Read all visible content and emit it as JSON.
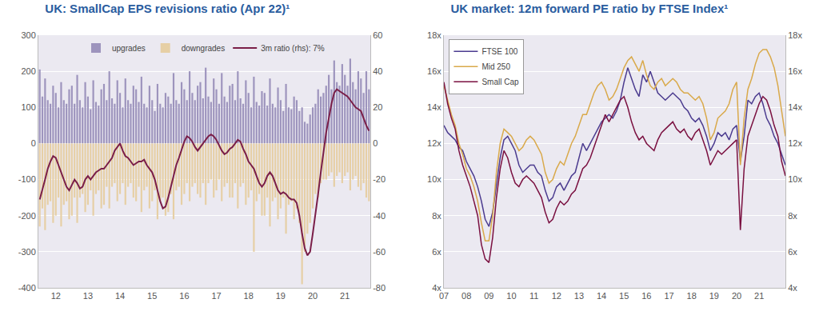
{
  "chart_data": [
    {
      "type": "bar",
      "title": "UK: SmallCap EPS revisions ratio (Apr 22)¹",
      "categories": [
        null,
        null,
        null,
        null,
        null,
        null,
        "12",
        null,
        null,
        null,
        null,
        null,
        null,
        null,
        null,
        null,
        null,
        null,
        "13",
        null,
        null,
        null,
        null,
        null,
        null,
        null,
        null,
        null,
        null,
        null,
        "14",
        null,
        null,
        null,
        null,
        null,
        null,
        null,
        null,
        null,
        null,
        null,
        "15",
        null,
        null,
        null,
        null,
        null,
        null,
        null,
        null,
        null,
        null,
        null,
        "16",
        null,
        null,
        null,
        null,
        null,
        null,
        null,
        null,
        null,
        null,
        null,
        "17",
        null,
        null,
        null,
        null,
        null,
        null,
        null,
        null,
        null,
        null,
        null,
        "18",
        null,
        null,
        null,
        null,
        null,
        null,
        null,
        null,
        null,
        null,
        null,
        "19",
        null,
        null,
        null,
        null,
        null,
        null,
        null,
        null,
        null,
        null,
        null,
        "20",
        null,
        null,
        null,
        null,
        null,
        null,
        null,
        null,
        null,
        null,
        null,
        "21",
        null,
        null,
        null,
        null,
        null,
        null,
        null,
        null,
        null
      ],
      "series": [
        {
          "name": "upgrades",
          "type": "bar",
          "color": "#9d94bd",
          "values": [
            205,
            130,
            180,
            120,
            110,
            160,
            140,
            100,
            170,
            120,
            110,
            150,
            160,
            110,
            190,
            120,
            100,
            170,
            130,
            95,
            175,
            115,
            105,
            150,
            165,
            120,
            200,
            125,
            110,
            175,
            140,
            100,
            180,
            120,
            110,
            160,
            150,
            115,
            185,
            110,
            100,
            160,
            120,
            90,
            165,
            110,
            100,
            140,
            130,
            110,
            195,
            120,
            110,
            170,
            150,
            120,
            200,
            140,
            120,
            160,
            170,
            125,
            210,
            130,
            115,
            180,
            150,
            110,
            195,
            130,
            115,
            160,
            165,
            120,
            200,
            125,
            110,
            175,
            140,
            100,
            185,
            115,
            105,
            145,
            140,
            105,
            180,
            110,
            100,
            155,
            120,
            90,
            165,
            100,
            95,
            130,
            120,
            90,
            100,
            60,
            55,
            80,
            100,
            110,
            150,
            130,
            140,
            160,
            190,
            150,
            230,
            170,
            160,
            220,
            190,
            160,
            235,
            170,
            150,
            200,
            180,
            140,
            200,
            150
          ]
        },
        {
          "name": "downgrades",
          "type": "bar",
          "color": "#e6cfa5",
          "values": [
            -230,
            -180,
            -240,
            -170,
            -160,
            -220,
            -200,
            -150,
            -230,
            -170,
            -160,
            -210,
            -200,
            -150,
            -220,
            -150,
            -140,
            -190,
            -170,
            -130,
            -200,
            -140,
            -130,
            -180,
            -170,
            -120,
            -180,
            -120,
            -110,
            -160,
            -140,
            -110,
            -170,
            -120,
            -110,
            -150,
            -160,
            -120,
            -190,
            -130,
            -120,
            -180,
            -160,
            -130,
            -210,
            -160,
            -150,
            -200,
            -190,
            -140,
            -210,
            -130,
            -120,
            -170,
            -140,
            -110,
            -160,
            -120,
            -110,
            -140,
            -150,
            -110,
            -170,
            -110,
            -100,
            -150,
            -130,
            -100,
            -160,
            -120,
            -110,
            -150,
            -150,
            -110,
            -180,
            -120,
            -110,
            -170,
            -150,
            -130,
            -300,
            -160,
            -140,
            -200,
            -200,
            -150,
            -230,
            -160,
            -150,
            -210,
            -180,
            -150,
            -250,
            -170,
            -160,
            -210,
            -180,
            -220,
            -390,
            -300,
            -250,
            -220,
            -180,
            -140,
            -150,
            -110,
            -100,
            -100,
            -90,
            -80,
            -120,
            -90,
            -80,
            -110,
            -90,
            -80,
            -130,
            -100,
            -90,
            -120,
            -130,
            -110,
            -150,
            -160
          ]
        },
        {
          "name": "3m ratio (rhs): 7%",
          "type": "line",
          "axis": "y2",
          "color": "#7a1e48",
          "values": [
            -31,
            -26,
            -20,
            -14,
            -10,
            -7,
            -8,
            -12,
            -16,
            -20,
            -24,
            -26,
            -23,
            -20,
            -22,
            -25,
            -24,
            -20,
            -18,
            -20,
            -18,
            -16,
            -15,
            -14,
            -14,
            -12,
            -10,
            -8,
            -4,
            -2,
            0,
            -4,
            -7,
            -8,
            -10,
            -12,
            -11,
            -10,
            -10,
            -9,
            -12,
            -14,
            -16,
            -20,
            -26,
            -32,
            -36,
            -35,
            -30,
            -24,
            -18,
            -12,
            -8,
            -3,
            1,
            4,
            3,
            1,
            -2,
            -4,
            -2,
            0,
            2,
            4,
            5,
            4,
            2,
            -1,
            -4,
            -6,
            -5,
            -3,
            -2,
            0,
            2,
            1,
            -3,
            -6,
            -10,
            -12,
            -14,
            -18,
            -22,
            -24,
            -22,
            -18,
            -16,
            -18,
            -22,
            -26,
            -28,
            -27,
            -28,
            -30,
            -31,
            -31,
            -33,
            -40,
            -50,
            -58,
            -62,
            -60,
            -50,
            -40,
            -28,
            -16,
            -4,
            6,
            14,
            22,
            28,
            30,
            29,
            28,
            27,
            26,
            24,
            22,
            20,
            19,
            18,
            14,
            10,
            7
          ]
        }
      ],
      "ylim": [
        -400,
        300
      ],
      "yticks": [
        -400,
        -300,
        -200,
        -100,
        0,
        100,
        200,
        300
      ],
      "y2lim": [
        -80,
        60
      ],
      "y2ticks": [
        -80,
        -60,
        -40,
        -20,
        0,
        20,
        40,
        60
      ],
      "grid": true,
      "legend": "top"
    },
    {
      "type": "line",
      "title": "UK market: 12m forward PE ratio by FTSE Index¹",
      "categories": [
        "07",
        null,
        null,
        null,
        null,
        null,
        "08",
        null,
        null,
        null,
        null,
        null,
        "09",
        null,
        null,
        null,
        null,
        null,
        "10",
        null,
        null,
        null,
        null,
        null,
        "11",
        null,
        null,
        null,
        null,
        null,
        "12",
        null,
        null,
        null,
        null,
        null,
        "13",
        null,
        null,
        null,
        null,
        null,
        "14",
        null,
        null,
        null,
        null,
        null,
        "15",
        null,
        null,
        null,
        null,
        null,
        "16",
        null,
        null,
        null,
        null,
        null,
        "17",
        null,
        null,
        null,
        null,
        null,
        "18",
        null,
        null,
        null,
        null,
        null,
        "19",
        null,
        null,
        null,
        null,
        null,
        "20",
        null,
        null,
        null,
        null,
        null,
        "21",
        null,
        null,
        null,
        null,
        null,
        null,
        null
      ],
      "series": [
        {
          "name": "FTSE 100",
          "color": "#4b3b8f",
          "values": [
            13.0,
            12.6,
            12.4,
            12.2,
            11.8,
            11.6,
            11.0,
            10.6,
            10.2,
            9.6,
            8.8,
            7.8,
            7.4,
            8.2,
            9.8,
            11.2,
            12.2,
            12.4,
            12.0,
            11.6,
            10.8,
            10.4,
            10.6,
            10.8,
            10.8,
            10.4,
            10.2,
            9.4,
            8.8,
            9.0,
            9.6,
            9.8,
            9.4,
            9.8,
            10.2,
            10.4,
            11.2,
            12.0,
            11.6,
            12.0,
            12.4,
            12.8,
            13.2,
            13.4,
            13.6,
            13.4,
            13.8,
            14.4,
            15.4,
            16.2,
            15.6,
            15.0,
            14.6,
            15.8,
            15.4,
            16.0,
            15.4,
            14.8,
            14.6,
            14.4,
            14.6,
            14.8,
            14.6,
            14.4,
            14.0,
            13.8,
            13.4,
            13.2,
            13.4,
            13.0,
            12.4,
            11.6,
            12.0,
            12.6,
            12.4,
            12.6,
            12.2,
            12.8,
            13.0,
            11.0,
            12.4,
            14.4,
            14.2,
            14.6,
            14.8,
            14.2,
            13.4,
            13.0,
            12.4,
            12.0,
            11.4,
            10.8
          ]
        },
        {
          "name": "Mid 250",
          "color": "#d9a94a",
          "values": [
            15.2,
            14.4,
            13.6,
            13.0,
            12.0,
            11.4,
            10.6,
            10.2,
            9.6,
            8.8,
            7.6,
            6.6,
            6.6,
            8.0,
            10.4,
            12.0,
            12.8,
            12.6,
            12.4,
            12.0,
            11.6,
            11.8,
            12.2,
            12.4,
            12.2,
            11.8,
            11.4,
            10.4,
            9.8,
            10.0,
            10.6,
            11.0,
            10.8,
            11.4,
            12.0,
            12.4,
            13.0,
            13.6,
            13.6,
            14.2,
            14.8,
            15.2,
            15.4,
            15.0,
            14.4,
            14.6,
            15.0,
            15.6,
            16.2,
            16.6,
            16.8,
            16.4,
            16.0,
            16.6,
            15.8,
            15.2,
            15.0,
            15.4,
            15.6,
            15.2,
            15.4,
            15.6,
            15.4,
            15.0,
            14.8,
            14.8,
            14.6,
            14.4,
            14.6,
            14.2,
            13.4,
            12.2,
            12.6,
            13.4,
            13.6,
            13.8,
            14.2,
            15.0,
            15.4,
            10.8,
            13.4,
            15.0,
            15.6,
            16.4,
            17.0,
            17.2,
            17.2,
            16.8,
            16.2,
            15.2,
            13.8,
            12.4
          ]
        },
        {
          "name": "Small Cap",
          "color": "#7a1040",
          "values": [
            15.4,
            14.2,
            13.4,
            12.8,
            11.6,
            10.8,
            10.2,
            9.6,
            8.8,
            8.0,
            6.4,
            5.6,
            5.4,
            6.8,
            9.0,
            10.6,
            11.6,
            11.2,
            10.4,
            9.8,
            9.6,
            10.0,
            10.2,
            10.0,
            9.8,
            9.4,
            9.0,
            8.2,
            7.6,
            7.8,
            8.4,
            8.8,
            8.6,
            8.8,
            9.2,
            9.4,
            10.0,
            10.6,
            10.8,
            11.2,
            11.8,
            12.4,
            13.0,
            13.6,
            13.2,
            13.6,
            14.0,
            14.4,
            14.6,
            14.0,
            13.2,
            12.6,
            12.2,
            12.4,
            12.0,
            11.8,
            11.6,
            12.2,
            12.6,
            12.8,
            13.0,
            13.2,
            12.8,
            12.6,
            12.8,
            12.4,
            12.2,
            12.6,
            12.8,
            12.2,
            11.6,
            10.8,
            11.2,
            11.6,
            11.4,
            11.6,
            11.8,
            12.0,
            12.2,
            7.2,
            10.6,
            12.4,
            13.0,
            13.6,
            14.2,
            14.6,
            14.4,
            13.8,
            13.0,
            12.4,
            11.0,
            10.2
          ]
        }
      ],
      "ylim": [
        4,
        18
      ],
      "yticks": [
        {
          "value": 4,
          "label": "4x"
        },
        {
          "value": 6,
          "label": "6x"
        },
        {
          "value": 8,
          "label": "8x"
        },
        {
          "value": 10,
          "label": "10x"
        },
        {
          "value": 12,
          "label": "12x"
        },
        {
          "value": 14,
          "label": "14x"
        },
        {
          "value": 16,
          "label": "16x"
        },
        {
          "value": 18,
          "label": "18x"
        }
      ],
      "y2lim": [
        4,
        18
      ],
      "y2ticks": [
        {
          "value": 4,
          "label": "4x"
        },
        {
          "value": 6,
          "label": "6x"
        },
        {
          "value": 8,
          "label": "8x"
        },
        {
          "value": 10,
          "label": "10x"
        },
        {
          "value": 12,
          "label": "12x"
        },
        {
          "value": 14,
          "label": "14x"
        },
        {
          "value": 16,
          "label": "16x"
        },
        {
          "value": 18,
          "label": "18x"
        }
      ],
      "grid": true,
      "legend": "top-left"
    }
  ]
}
